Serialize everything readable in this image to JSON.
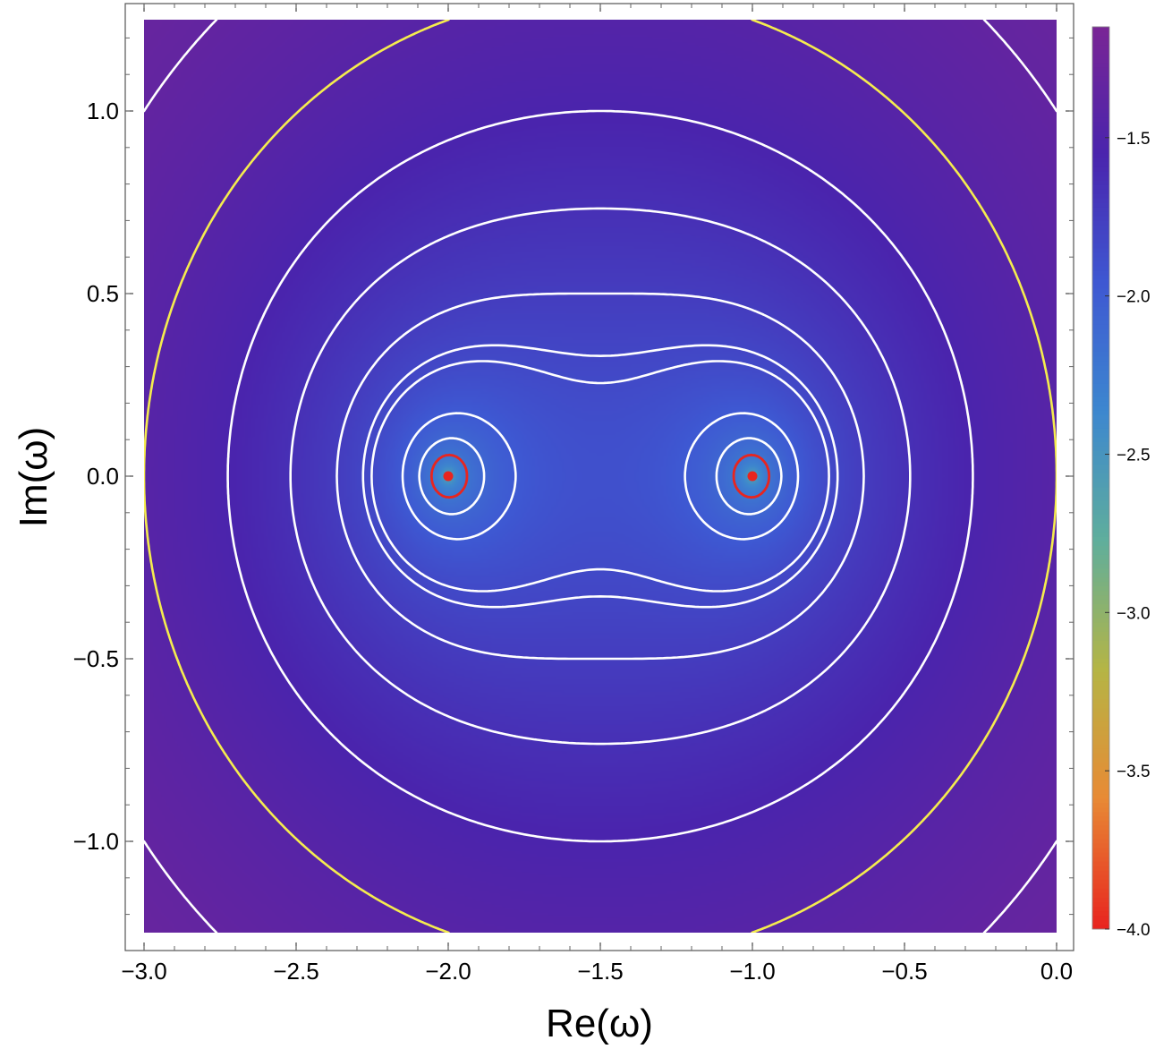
{
  "chart_data": {
    "type": "heatmap",
    "title": "",
    "xlabel": "Re(ω)",
    "ylabel": "Im(ω)",
    "xlim": [
      -3.0,
      0.0
    ],
    "ylim": [
      -1.25,
      1.25
    ],
    "x_ticks": [
      "−3.0",
      "−2.5",
      "−2.0",
      "−1.5",
      "−1.0",
      "−0.5",
      "0.0"
    ],
    "x_tick_values": [
      -3.0,
      -2.5,
      -2.0,
      -1.5,
      -1.0,
      -0.5,
      0.0
    ],
    "y_ticks": [
      "−1.0",
      "−0.5",
      "0.0",
      "0.5",
      "1.0"
    ],
    "y_tick_values": [
      -1.0,
      -0.5,
      0.0,
      0.5,
      1.0
    ],
    "colorbar": {
      "range": [
        -4.0,
        -1.15
      ],
      "ticks": [
        "−4.0",
        "−3.5",
        "−3.0",
        "−2.5",
        "−2.0",
        "−1.5"
      ],
      "tick_values": [
        -4.0,
        -3.5,
        -3.0,
        -2.5,
        -2.0,
        -1.5
      ],
      "colors": [
        "#e8251f",
        "#e88a35",
        "#b5b545",
        "#5fae9c",
        "#3d87cf",
        "#3e58d2",
        "#4a24ad",
        "#7a2595"
      ]
    },
    "critical_points": [
      {
        "re": -2.0,
        "im": 0.0,
        "color": "#e8251f"
      },
      {
        "re": -1.0,
        "im": 0.0,
        "color": "#e8251f"
      }
    ],
    "contour_colors": {
      "default": "#ffffff",
      "special": "#f5ec4e",
      "inner": "#e8251f"
    },
    "grid": false,
    "legend": "right colorbar"
  }
}
